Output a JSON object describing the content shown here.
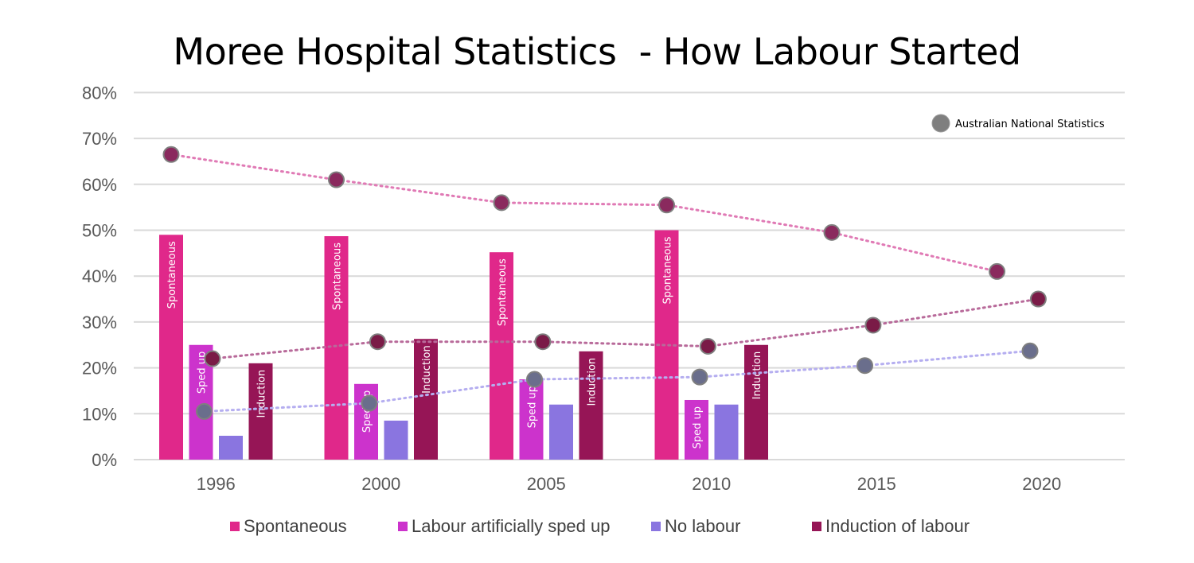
{
  "chart_data": {
    "type": "bar",
    "title": "Moree Hospital Statistics  - How Labour Started",
    "xlabel": "",
    "ylabel": "",
    "ylim": [
      0,
      80
    ],
    "yticks": [
      0,
      10,
      20,
      30,
      40,
      50,
      60,
      70,
      80
    ],
    "ytick_labels": [
      "0%",
      "10%",
      "20%",
      "30%",
      "40%",
      "50%",
      "60%",
      "70%",
      "80%"
    ],
    "grid": true,
    "categories": [
      "1996",
      "2000",
      "2005",
      "2010",
      "2015",
      "2020"
    ],
    "series": [
      {
        "name": "Spontaneous",
        "color": "#e0288a",
        "bar_label": "Spontaneous",
        "values": [
          49,
          48.7,
          45.2,
          50,
          null,
          null
        ]
      },
      {
        "name": "Labour artificially sped up",
        "color": "#cc33cc",
        "bar_label": "Sped up",
        "values": [
          25,
          16.5,
          17.5,
          13,
          null,
          null
        ]
      },
      {
        "name": "No labour",
        "color": "#8a75e0",
        "bar_label": "",
        "values": [
          5.2,
          8.5,
          12,
          12,
          null,
          null
        ]
      },
      {
        "name": "Induction of labour",
        "color": "#961556",
        "bar_label": "Induction",
        "values": [
          21,
          26.3,
          23.6,
          25,
          null,
          null
        ]
      }
    ],
    "national": {
      "legend_label": "Australian National Statistics",
      "marker_color": "#7f7f7f",
      "legend_position": "top-right",
      "lines": [
        {
          "name": "Spontaneous (national)",
          "color": "#e07ab5",
          "marker_fill": "#8a2a5e",
          "points": [
            [
              1995,
              66.5
            ],
            [
              2000,
              61
            ],
            [
              2005,
              56
            ],
            [
              2010,
              55.5
            ],
            [
              2015,
              49.5
            ],
            [
              2020,
              41
            ]
          ]
        },
        {
          "name": "Induction of labour (national)",
          "color": "#b86a9a",
          "marker_fill": "#7a1b47",
          "points": [
            [
              1996.25,
              22
            ],
            [
              2001.25,
              25.7
            ],
            [
              2006.25,
              25.7
            ],
            [
              2011.25,
              24.7
            ],
            [
              2016.25,
              29.3
            ],
            [
              2021.25,
              35
            ]
          ]
        },
        {
          "name": "No labour (national)",
          "color": "#b5aef0",
          "marker_fill": "#6a6e8c",
          "points": [
            [
              1996.0,
              10.5
            ],
            [
              2001.0,
              12.3
            ],
            [
              2006.0,
              17.5
            ],
            [
              2011.0,
              18
            ],
            [
              2016.0,
              20.5
            ],
            [
              2021.0,
              23.7
            ]
          ]
        }
      ]
    }
  }
}
